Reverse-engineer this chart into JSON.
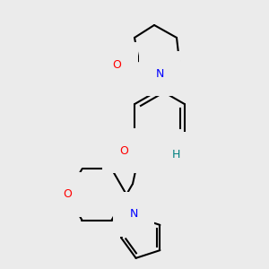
{
  "bg_color": "#ebebeb",
  "atom_colors": {
    "N": "#0000ff",
    "O": "#ff0000",
    "H": "#008080"
  },
  "bond_color": "#000000",
  "bond_width": 1.5
}
